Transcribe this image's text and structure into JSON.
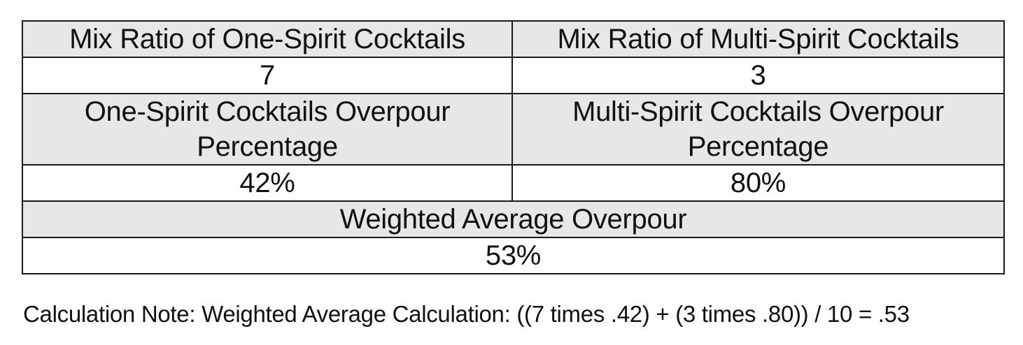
{
  "table": {
    "one_spirit_ratio_header": "Mix Ratio of One-Spirit Cocktails",
    "multi_spirit_ratio_header": "Mix Ratio of Multi-Spirit Cocktails",
    "one_spirit_ratio_value": "7",
    "multi_spirit_ratio_value": "3",
    "one_spirit_overpour_header": "One-Spirit Cocktails Overpour Percentage",
    "multi_spirit_overpour_header": "Multi-Spirit Cocktails Overpour Percentage",
    "one_spirit_overpour_value": "42%",
    "multi_spirit_overpour_value": "80%",
    "weighted_average_header": "Weighted Average Overpour",
    "weighted_average_value": "53%"
  },
  "note": {
    "text": "Calculation Note: Weighted Average Calculation: ((7 times .42) + (3 times .80)) / 10 = .53"
  },
  "colors": {
    "header_fill": "#e7e7e7",
    "value_fill": "#ffffff",
    "border": "#1a1a1a"
  }
}
